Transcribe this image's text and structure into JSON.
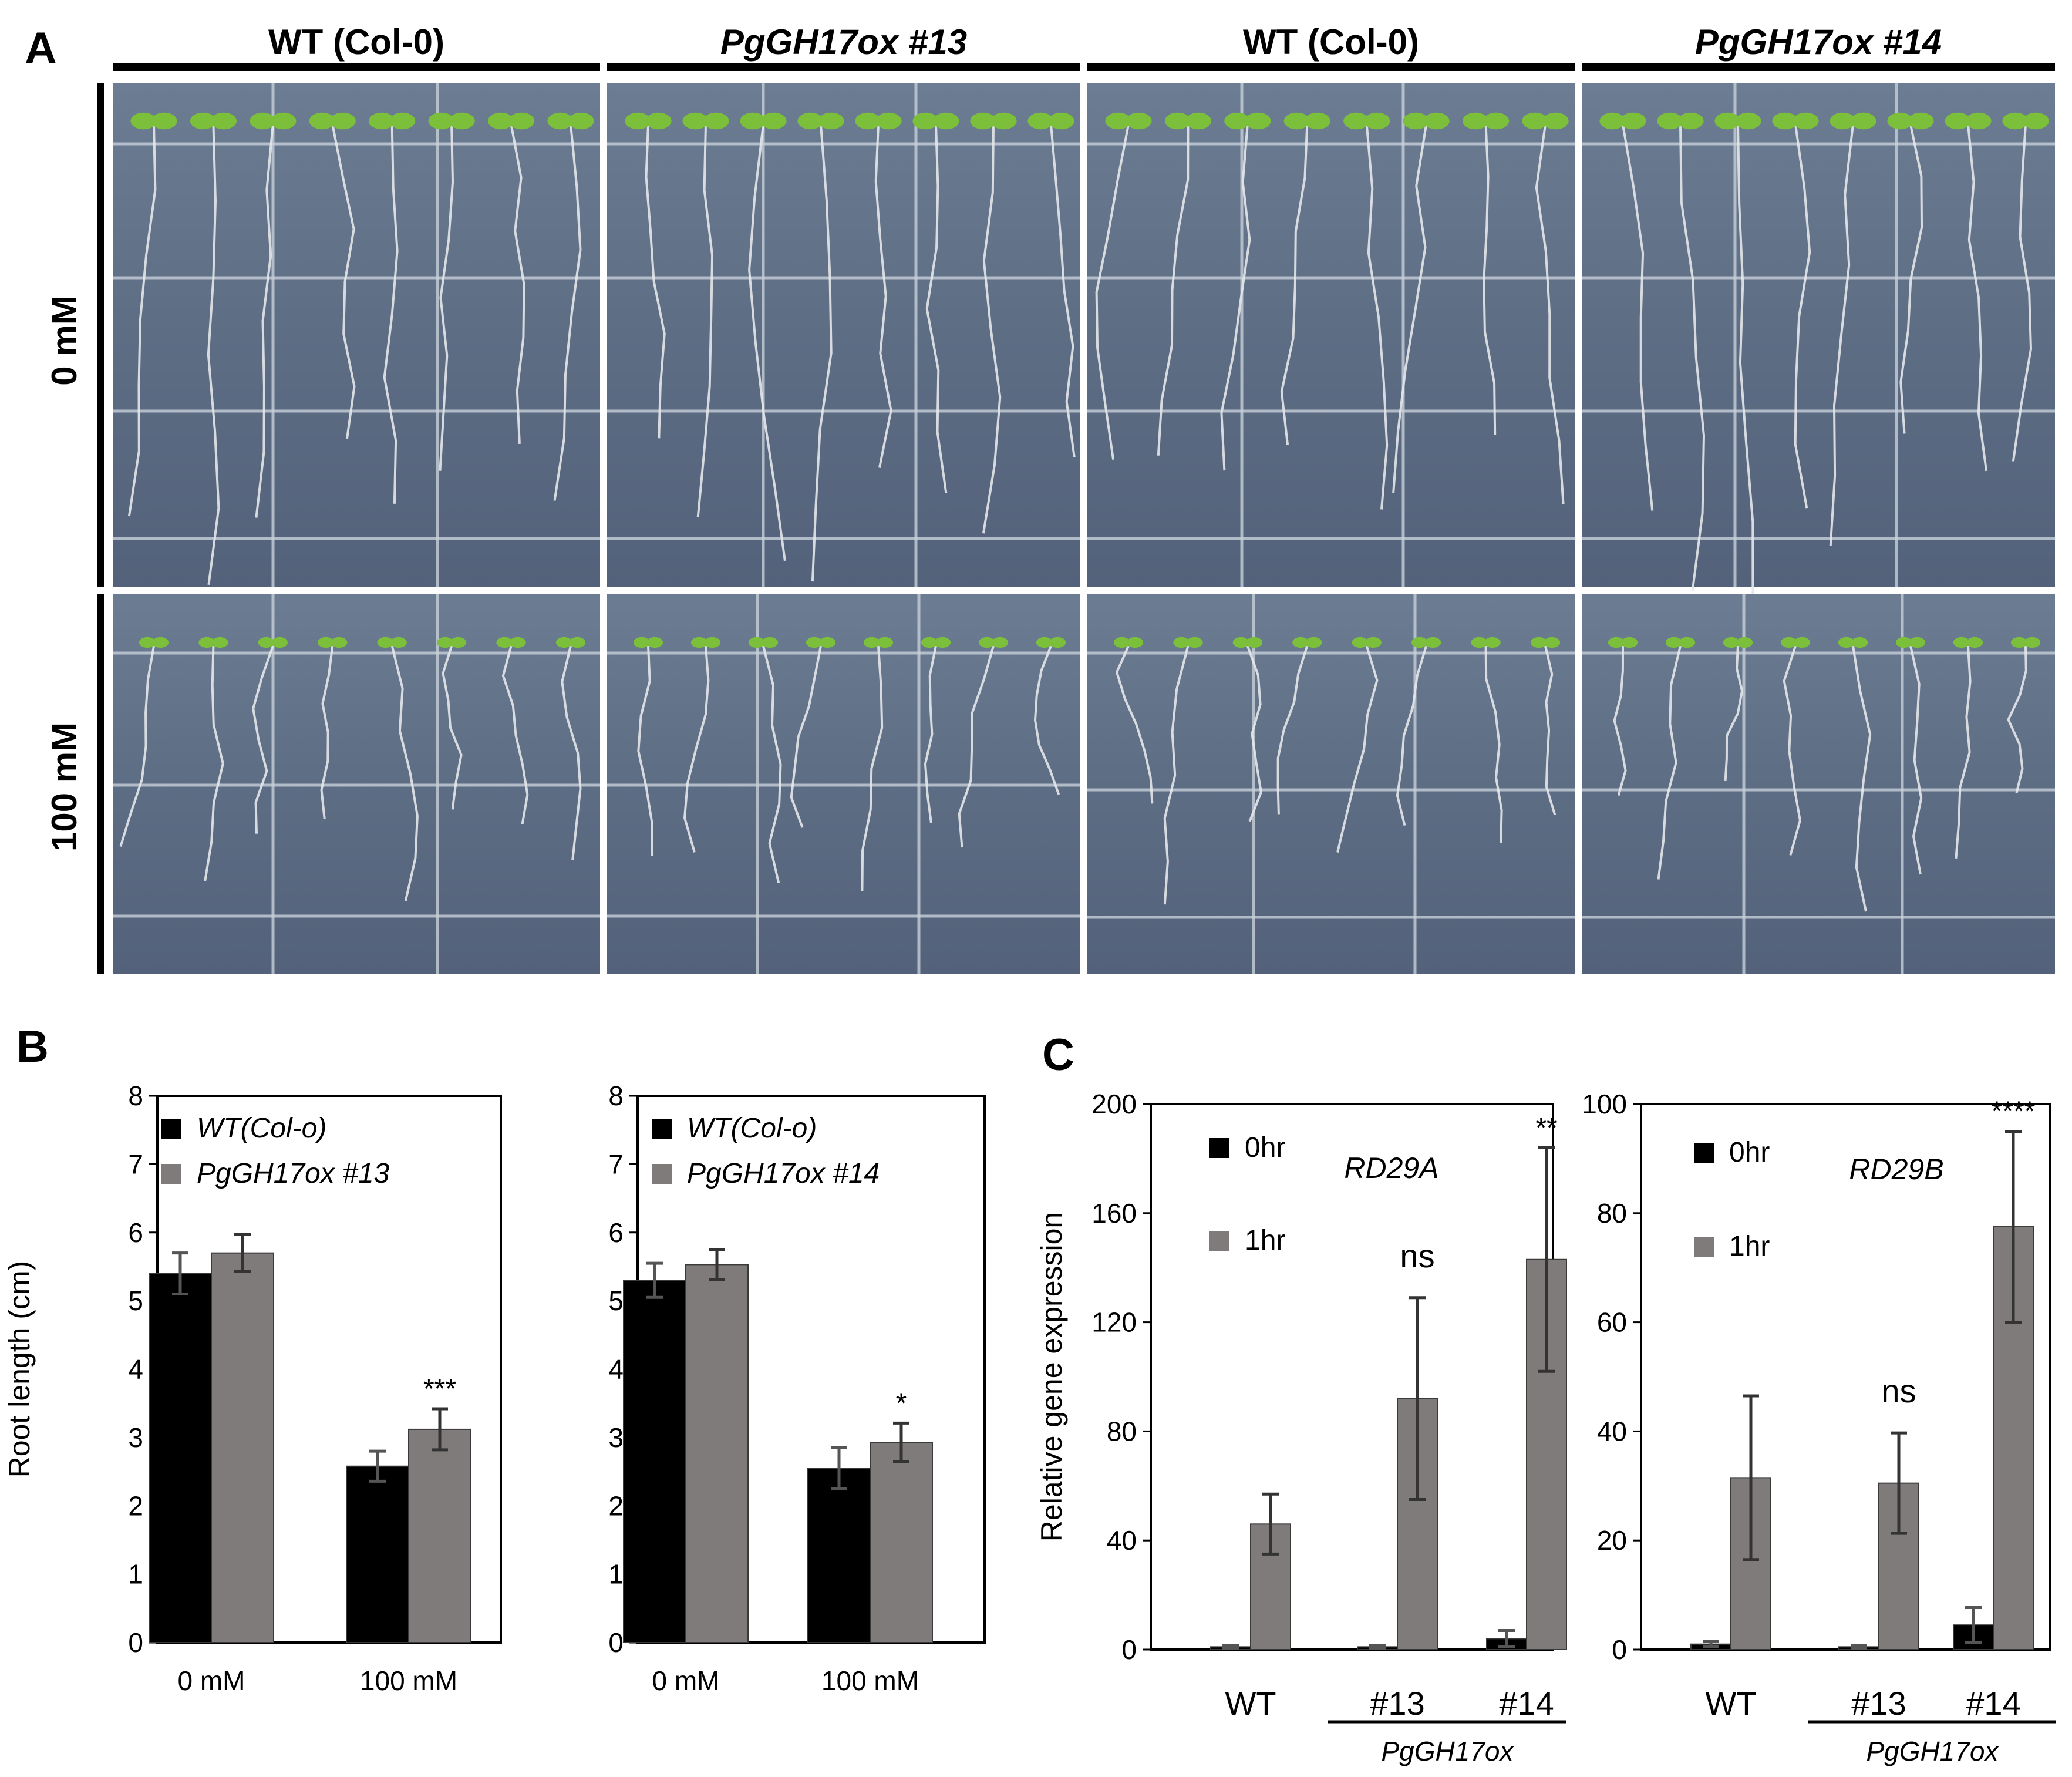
{
  "panel_labels": {
    "a": "A",
    "b": "B",
    "c": "C"
  },
  "photo_panel": {
    "genotype_headers": [
      "WT (Col-0)",
      "PgGH17ox #13",
      "WT (Col-0)",
      "PgGH17ox #14"
    ],
    "row_labels": [
      "0 mM",
      "100 mM"
    ],
    "colors": {
      "plate": "#5e6f86",
      "grid": "#c8d0da",
      "leaf": "#7cbf3a",
      "root": "#e4e7ea"
    }
  },
  "chart_data": [
    {
      "type": "bar",
      "panel": "B",
      "ylabel": "Root length (cm)",
      "ylim": [
        0,
        8
      ],
      "yticks": [
        "0",
        "1",
        "2",
        "3",
        "4",
        "5",
        "6",
        "7",
        "8"
      ],
      "categories": [
        "0 mM",
        "100 mM"
      ],
      "series": [
        {
          "name": "WT(Col-o)",
          "color": "#000000",
          "values": [
            5.4,
            2.58
          ],
          "errors": [
            0.3,
            0.22
          ]
        },
        {
          "name": "PgGH17ox #13",
          "color": "#7f7b7b",
          "values": [
            5.7,
            3.12
          ],
          "errors": [
            0.27,
            0.3
          ]
        }
      ],
      "annotations": [
        {
          "category": 1,
          "series": 1,
          "text": "***"
        }
      ],
      "legend": "top-left"
    },
    {
      "type": "bar",
      "panel": "B",
      "ylabel": "",
      "ylim": [
        0,
        8
      ],
      "yticks": [
        "0",
        "1",
        "2",
        "3",
        "4",
        "5",
        "6",
        "7",
        "8"
      ],
      "categories": [
        "0 mM",
        "100 mM"
      ],
      "series": [
        {
          "name": "WT(Col-o)",
          "color": "#000000",
          "values": [
            5.3,
            2.55
          ],
          "errors": [
            0.25,
            0.3
          ]
        },
        {
          "name": "PgGH17ox #14",
          "color": "#7f7b7b",
          "values": [
            5.53,
            2.93
          ],
          "errors": [
            0.22,
            0.28
          ]
        }
      ],
      "annotations": [
        {
          "category": 1,
          "series": 1,
          "text": "*"
        }
      ],
      "legend": "top-left"
    },
    {
      "type": "bar",
      "panel": "C",
      "title": "RD29A",
      "ylabel": "Relative gene expression",
      "ylim": [
        0,
        200
      ],
      "yticks": [
        "0",
        "40",
        "80",
        "120",
        "160",
        "200"
      ],
      "categories": [
        "WT",
        "#13",
        "#14"
      ],
      "group_label": "PgGH17ox",
      "series": [
        {
          "name": "0hr",
          "color": "#000000",
          "values": [
            1,
            1,
            4
          ],
          "errors": [
            0.5,
            0.5,
            3
          ]
        },
        {
          "name": "1hr",
          "color": "#7f7b7b",
          "values": [
            46,
            92,
            143
          ],
          "errors": [
            11,
            37,
            41
          ]
        }
      ],
      "annotations": [
        {
          "category": 1,
          "series": 1,
          "text": "ns"
        },
        {
          "category": 2,
          "series": 1,
          "text": "**"
        }
      ],
      "legend": "top-left"
    },
    {
      "type": "bar",
      "panel": "C",
      "title": "RD29B",
      "ylabel": "",
      "ylim": [
        0,
        100
      ],
      "yticks": [
        "0",
        "20",
        "40",
        "60",
        "80",
        "100"
      ],
      "categories": [
        "WT",
        "#13",
        "#14"
      ],
      "group_label": "PgGH17ox",
      "series": [
        {
          "name": "0hr",
          "color": "#000000",
          "values": [
            1,
            0.5,
            4.5
          ],
          "errors": [
            0.5,
            0.3,
            3.2
          ]
        },
        {
          "name": "1hr",
          "color": "#7f7b7b",
          "values": [
            31.5,
            30.5,
            77.5
          ],
          "errors": [
            15,
            9.2,
            17.5
          ]
        }
      ],
      "annotations": [
        {
          "category": 1,
          "series": 1,
          "text": "ns"
        },
        {
          "category": 2,
          "series": 1,
          "text": "****"
        }
      ],
      "legend": "top-left"
    }
  ]
}
